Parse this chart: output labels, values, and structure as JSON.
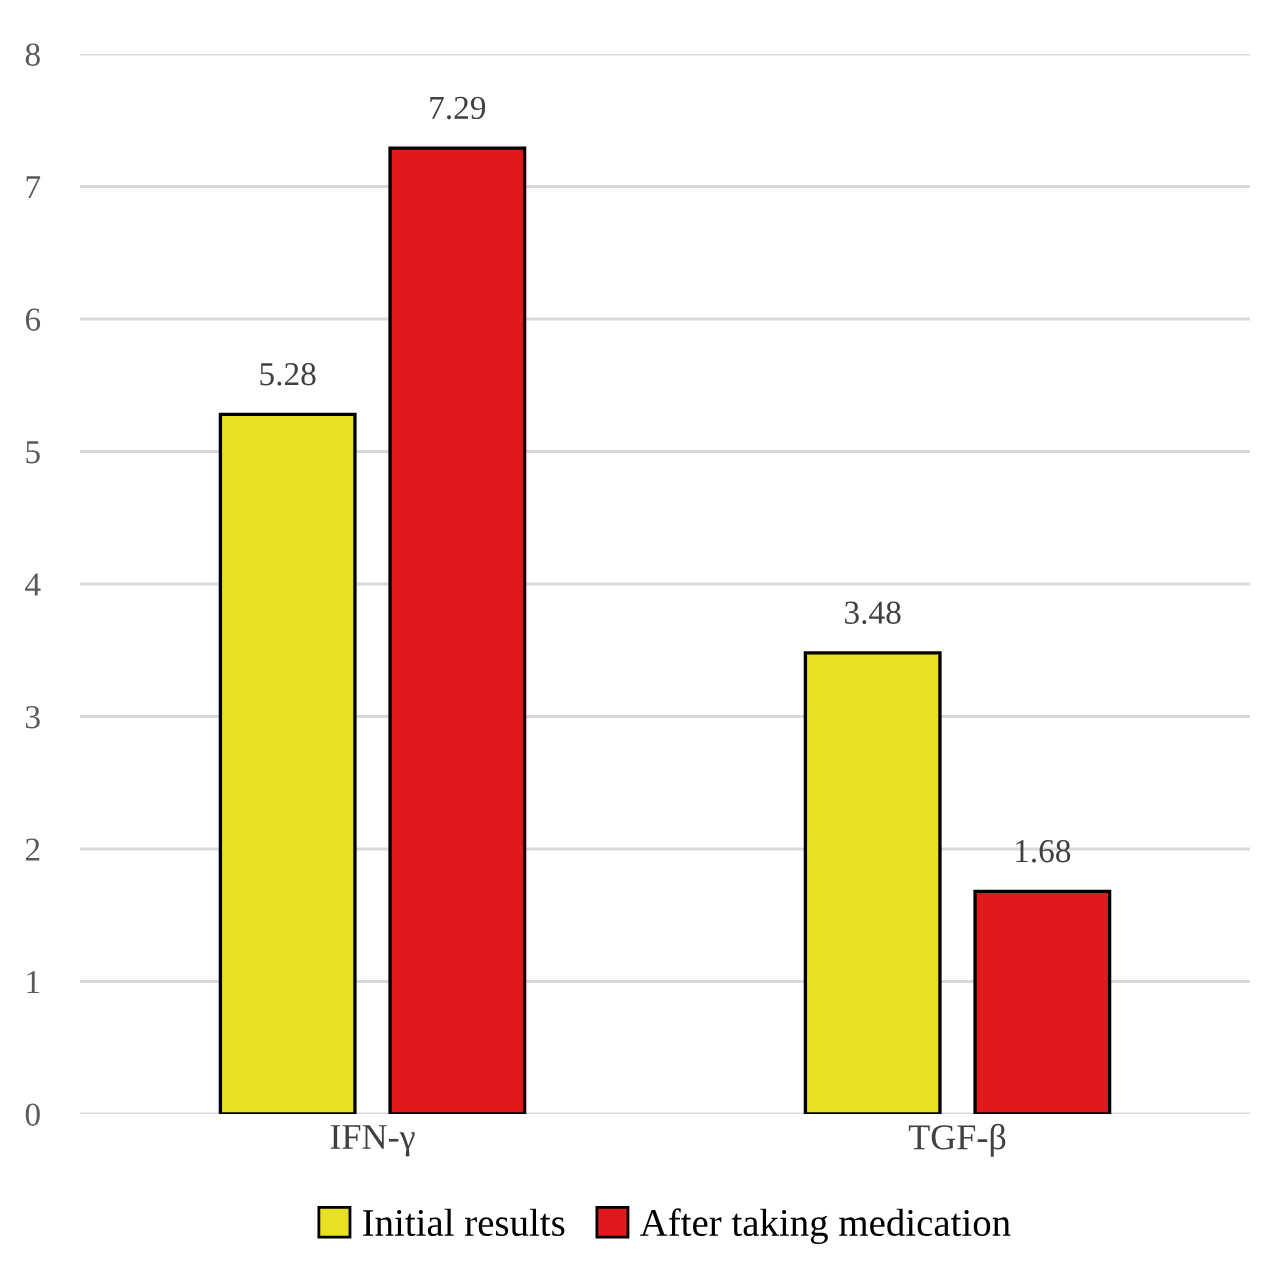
{
  "chart_data": {
    "type": "bar",
    "categories": [
      "IFN-γ",
      "TGF-β"
    ],
    "series": [
      {
        "name": "Initial results",
        "color": "#e8e022",
        "values": [
          5.28,
          3.48
        ]
      },
      {
        "name": "After taking medication",
        "color": "#e2191c",
        "values": [
          7.29,
          1.68
        ]
      }
    ],
    "ylim": [
      0,
      8
    ],
    "yticks": [
      0,
      1,
      2,
      3,
      4,
      5,
      6,
      7,
      8
    ],
    "grid": "y",
    "legend": "bottom",
    "data_labels": true
  }
}
